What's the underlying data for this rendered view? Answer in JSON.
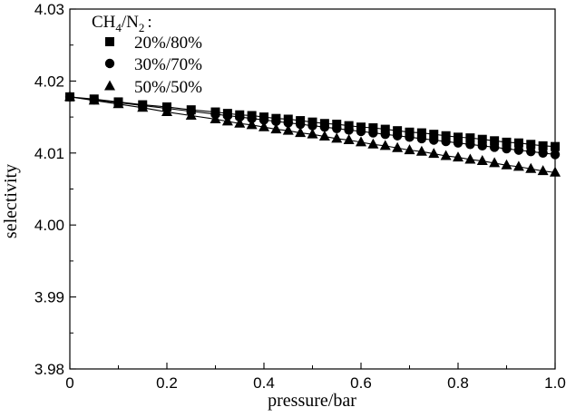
{
  "chart_data": {
    "type": "line",
    "title": "",
    "xlabel": "pressure/bar",
    "ylabel": "selectivity",
    "xlim": [
      0,
      1.0
    ],
    "ylim": [
      3.98,
      4.03
    ],
    "xticks": [
      "0",
      "0.2",
      "0.4",
      "0.6",
      "0.8",
      "1.0"
    ],
    "xtick_values": [
      0,
      0.2,
      0.4,
      0.6,
      0.8,
      1.0
    ],
    "yticks": [
      "3.98",
      "3.99",
      "4.00",
      "4.01",
      "4.02",
      "4.03"
    ],
    "ytick_values": [
      3.98,
      3.99,
      4.0,
      4.01,
      4.02,
      4.03
    ],
    "grid": false,
    "legend": {
      "position": "top-left",
      "title_main": "CH",
      "title_sub1": "4",
      "title_mid": "/N",
      "title_sub2": "2",
      "title_end": ":"
    },
    "series": [
      {
        "name": "20%/80%",
        "marker": "square",
        "x": [
          0,
          0.05,
          0.1,
          0.15,
          0.2,
          0.25,
          0.3,
          0.325,
          0.35,
          0.375,
          0.4,
          0.425,
          0.45,
          0.475,
          0.5,
          0.525,
          0.55,
          0.575,
          0.6,
          0.625,
          0.65,
          0.675,
          0.7,
          0.725,
          0.75,
          0.775,
          0.8,
          0.825,
          0.85,
          0.875,
          0.9,
          0.925,
          0.95,
          0.975,
          1.0
        ],
        "values": [
          4.0178,
          4.0175,
          4.0171,
          4.0167,
          4.0164,
          4.016,
          4.0157,
          4.0155,
          4.0153,
          4.0152,
          4.015,
          4.0148,
          4.0147,
          4.0145,
          4.0143,
          4.0141,
          4.014,
          4.0138,
          4.0136,
          4.0135,
          4.0133,
          4.0131,
          4.0129,
          4.0128,
          4.0126,
          4.0124,
          4.0122,
          4.0121,
          4.0119,
          4.0117,
          4.0115,
          4.0114,
          4.0112,
          4.011,
          4.0109
        ]
      },
      {
        "name": "30%/70%",
        "marker": "circle",
        "x": [
          0,
          0.05,
          0.1,
          0.15,
          0.2,
          0.25,
          0.3,
          0.325,
          0.35,
          0.375,
          0.4,
          0.425,
          0.45,
          0.475,
          0.5,
          0.525,
          0.55,
          0.575,
          0.6,
          0.625,
          0.65,
          0.675,
          0.7,
          0.725,
          0.75,
          0.775,
          0.8,
          0.825,
          0.85,
          0.875,
          0.9,
          0.925,
          0.95,
          0.975,
          1.0
        ],
        "values": [
          4.0178,
          4.0174,
          4.017,
          4.0166,
          4.0162,
          4.0158,
          4.0154,
          4.0152,
          4.015,
          4.0148,
          4.0146,
          4.0144,
          4.0142,
          4.014,
          4.0138,
          4.0136,
          4.0134,
          4.0132,
          4.013,
          4.0128,
          4.0126,
          4.0124,
          4.0122,
          4.012,
          4.0118,
          4.0116,
          4.0114,
          4.0112,
          4.011,
          4.0108,
          4.0106,
          4.0104,
          4.0102,
          4.01,
          4.0098
        ]
      },
      {
        "name": "50%/50%",
        "marker": "triangle",
        "x": [
          0,
          0.05,
          0.1,
          0.15,
          0.2,
          0.25,
          0.3,
          0.325,
          0.35,
          0.375,
          0.4,
          0.425,
          0.45,
          0.475,
          0.5,
          0.525,
          0.55,
          0.575,
          0.6,
          0.625,
          0.65,
          0.675,
          0.7,
          0.725,
          0.75,
          0.775,
          0.8,
          0.825,
          0.85,
          0.875,
          0.9,
          0.925,
          0.95,
          0.975,
          1.0
        ],
        "values": [
          4.0178,
          4.0173,
          4.0168,
          4.0163,
          4.0157,
          4.0152,
          4.0147,
          4.0144,
          4.0141,
          4.0139,
          4.0136,
          4.0133,
          4.0131,
          4.0128,
          4.0126,
          4.0123,
          4.012,
          4.0118,
          4.0115,
          4.0112,
          4.011,
          4.0107,
          4.0104,
          4.0102,
          4.0099,
          4.0096,
          4.0094,
          4.0091,
          4.0089,
          4.0086,
          4.0083,
          4.0081,
          4.0078,
          4.0075,
          4.0073
        ]
      }
    ]
  }
}
